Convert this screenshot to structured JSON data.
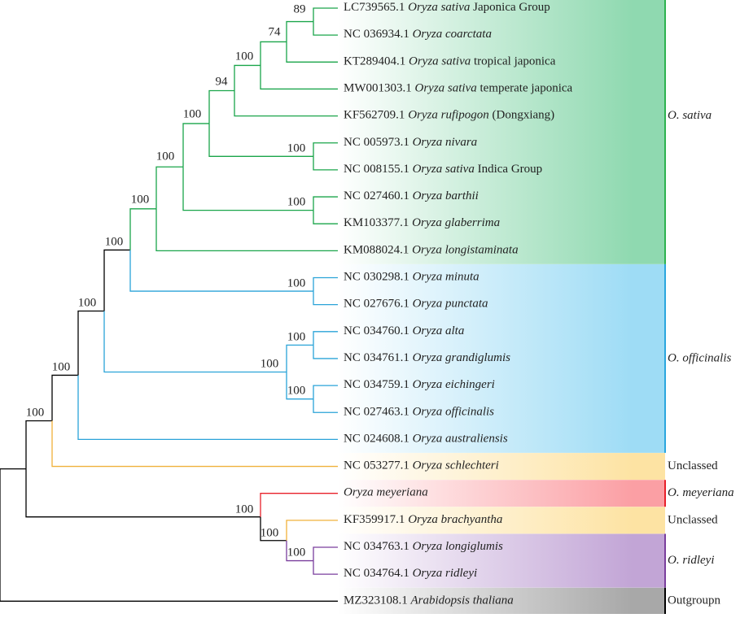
{
  "leaves": [
    {
      "accession": "LC739565.1",
      "species": "Oryza sativa",
      "note": "Japonica Group"
    },
    {
      "accession": "NC 036934.1",
      "species": "Oryza coarctata"
    },
    {
      "accession": "KT289404.1",
      "species": "Oryza sativa",
      "note": "tropical japonica"
    },
    {
      "accession": "MW001303.1",
      "species": "Oryza sativa",
      "note": "temperate japonica"
    },
    {
      "accession": "KF562709.1",
      "species": "Oryza rufipogon",
      "note": "(Dongxiang)"
    },
    {
      "accession": "NC 005973.1",
      "species": "Oryza nivara"
    },
    {
      "accession": "NC 008155.1",
      "species": "Oryza sativa",
      "note": "Indica Group"
    },
    {
      "accession": "NC 027460.1",
      "species": "Oryza barthii"
    },
    {
      "accession": "KM103377.1",
      "species": "Oryza glaberrima"
    },
    {
      "accession": "KM088024.1",
      "species": "Oryza longistaminata"
    },
    {
      "accession": "NC 030298.1",
      "species": "Oryza minuta"
    },
    {
      "accession": "NC 027676.1",
      "species": "Oryza punctata"
    },
    {
      "accession": "NC 034760.1",
      "species": "Oryza alta"
    },
    {
      "accession": "NC 034761.1",
      "species": "Oryza grandiglumis"
    },
    {
      "accession": "NC 034759.1",
      "species": "Oryza eichingeri"
    },
    {
      "accession": "NC 027463.1",
      "species": "Oryza officinalis"
    },
    {
      "accession": "NC 024608.1",
      "species": "Oryza australiensis"
    },
    {
      "accession": "NC 053277.1",
      "species": "Oryza schlechteri"
    },
    {
      "species": "Oryza meyeriana"
    },
    {
      "accession": "KF359917.1",
      "species": "Oryza brachyantha"
    },
    {
      "accession": "NC 034763.1",
      "species": "Oryza longiglumis"
    },
    {
      "accession": "NC 034764.1",
      "species": "Oryza ridleyi"
    },
    {
      "accession": "MZ323108.1",
      "species": "Arabidopsis thaliana"
    }
  ],
  "supports": [
    89,
    74,
    100,
    94,
    100,
    100,
    100,
    100,
    100,
    100,
    100,
    100,
    100,
    100,
    100,
    100,
    100,
    100,
    100,
    100
  ],
  "groups": [
    "O. sativa",
    "O. officinalis",
    "Unclassed",
    "O. meyeriana",
    "Unclassed",
    "O. ridleyi",
    "Outgroupn"
  ]
}
